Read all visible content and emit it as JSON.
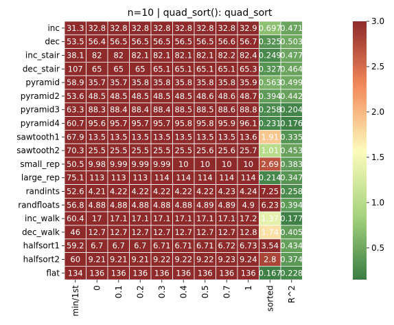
{
  "chart_data": {
    "type": "heatmap",
    "title": "n=10 | quad_sort(): quad_sort",
    "columns": [
      "min/1st",
      "0",
      "0.1",
      "0.2",
      "0.3",
      "0.4",
      "0.5",
      "0.7",
      "1",
      "sorted",
      "R^2"
    ],
    "rows": [
      "inc",
      "dec",
      "inc_stair",
      "dec_stair",
      "pyramid",
      "pyramid2",
      "pyramid3",
      "pyramid4",
      "sawtooth1",
      "sawtooth2",
      "small_rep",
      "large_rep",
      "randints",
      "randfloats",
      "inc_walk",
      "dec_walk",
      "halfsort1",
      "halfsort2",
      "flat"
    ],
    "values": [
      [
        "31.3",
        "32.8",
        "32.8",
        "32.8",
        "32.8",
        "32.8",
        "32.8",
        "32.8",
        "32.9",
        "0.697",
        "0.471"
      ],
      [
        "53.5",
        "56.4",
        "56.5",
        "56.5",
        "56.5",
        "56.5",
        "56.5",
        "56.6",
        "56.7",
        "0.325",
        "0.503"
      ],
      [
        "38.1",
        "82",
        "82",
        "82.1",
        "82.1",
        "82.1",
        "82.1",
        "82.2",
        "82.4",
        "0.249",
        "0.477"
      ],
      [
        "107",
        "65",
        "65",
        "65",
        "65.1",
        "65.1",
        "65.1",
        "65.1",
        "65.3",
        "0.327",
        "0.464"
      ],
      [
        "58.9",
        "35.7",
        "35.7",
        "35.8",
        "35.8",
        "35.8",
        "35.8",
        "35.8",
        "35.9",
        "0.563",
        "0.499"
      ],
      [
        "53.6",
        "48.5",
        "48.5",
        "48.5",
        "48.5",
        "48.5",
        "48.6",
        "48.6",
        "48.7",
        "0.394",
        "0.442"
      ],
      [
        "63.3",
        "88.3",
        "88.4",
        "88.4",
        "88.4",
        "88.5",
        "88.5",
        "88.6",
        "88.8",
        "0.258",
        "0.204"
      ],
      [
        "60.7",
        "95.6",
        "95.7",
        "95.7",
        "95.7",
        "95.8",
        "95.8",
        "95.9",
        "96.1",
        "0.231",
        "0.176"
      ],
      [
        "67.9",
        "13.5",
        "13.5",
        "13.5",
        "13.5",
        "13.5",
        "13.5",
        "13.5",
        "13.6",
        "1.91",
        "0.335"
      ],
      [
        "70.3",
        "25.5",
        "25.5",
        "25.5",
        "25.5",
        "25.5",
        "25.6",
        "25.6",
        "25.7",
        "1.01",
        "0.453"
      ],
      [
        "50.5",
        "9.98",
        "9.99",
        "9.99",
        "9.99",
        "10",
        "10",
        "10",
        "10",
        "2.69",
        "0.383"
      ],
      [
        "75.1",
        "113",
        "113",
        "113",
        "114",
        "114",
        "114",
        "114",
        "114",
        "0.214",
        "0.347"
      ],
      [
        "52.6",
        "4.21",
        "4.22",
        "4.22",
        "4.22",
        "4.22",
        "4.22",
        "4.23",
        "4.24",
        "7.25",
        "0.258"
      ],
      [
        "56.8",
        "4.88",
        "4.88",
        "4.88",
        "4.88",
        "4.88",
        "4.89",
        "4.89",
        "4.9",
        "6.23",
        "0.394"
      ],
      [
        "60.4",
        "17",
        "17.1",
        "17.1",
        "17.1",
        "17.1",
        "17.1",
        "17.1",
        "17.2",
        "1.37",
        "0.177"
      ],
      [
        "46",
        "12.7",
        "12.7",
        "12.7",
        "12.7",
        "12.7",
        "12.7",
        "12.7",
        "12.8",
        "1.74",
        "0.405"
      ],
      [
        "59.2",
        "6.7",
        "6.7",
        "6.7",
        "6.71",
        "6.71",
        "6.71",
        "6.72",
        "6.73",
        "3.54",
        "0.434"
      ],
      [
        "60",
        "9.21",
        "9.21",
        "9.21",
        "9.22",
        "9.22",
        "9.22",
        "9.23",
        "9.24",
        "2.8",
        "0.374"
      ],
      [
        "134",
        "136",
        "136",
        "136",
        "136",
        "136",
        "136",
        "136",
        "136",
        "0.167",
        "0.228"
      ]
    ],
    "color_range": [
      0.15,
      3.0
    ],
    "colormap": "RdYlGn_r",
    "colorbar_ticks": [
      0.5,
      1.0,
      1.5,
      2.0,
      2.5,
      3.0
    ],
    "colorbar_tick_labels": [
      "0.5",
      "1.0",
      "1.5",
      "2.0",
      "2.5",
      "3.0"
    ],
    "cell_text_color": "#ffffff",
    "grid_line_color": "#ffffff",
    "colormap_stops": [
      "#3a7d44",
      "#a7d47e",
      "#fdfbbd",
      "#f38a5b",
      "#8e2a2a"
    ]
  }
}
